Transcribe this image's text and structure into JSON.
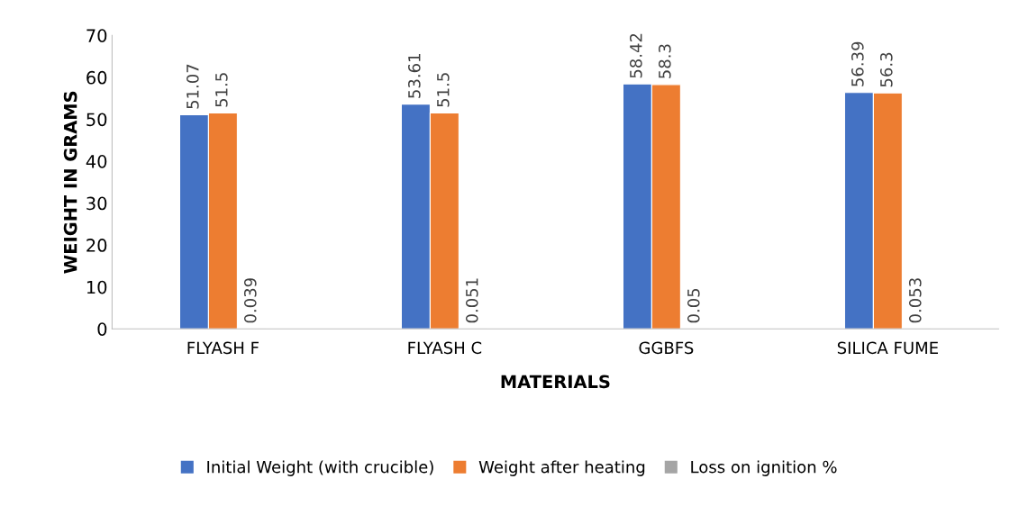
{
  "chart_data": {
    "type": "bar",
    "xlabel": "MATERIALS",
    "ylabel": "WEIGHT IN GRAMS",
    "categories": [
      "FLYASH F",
      "FLYASH C",
      "GGBFS",
      "SILICA FUME"
    ],
    "series": [
      {
        "name": "Initial Weight (with crucible)",
        "color": "#4472c4",
        "values": [
          51.07,
          53.61,
          58.42,
          56.39
        ]
      },
      {
        "name": "Weight after heating",
        "color": "#ed7d31",
        "values": [
          51.5,
          51.5,
          58.3,
          56.3
        ]
      },
      {
        "name": "Loss on ignition %",
        "color": "#a5a5a5",
        "values": [
          0.039,
          0.051,
          0.05,
          0.053
        ]
      }
    ],
    "ylim": [
      0,
      70
    ],
    "yticks": [
      0,
      10,
      20,
      30,
      40,
      50,
      60,
      70
    ],
    "data_labels": true,
    "grid": false,
    "legend": "bottom"
  }
}
